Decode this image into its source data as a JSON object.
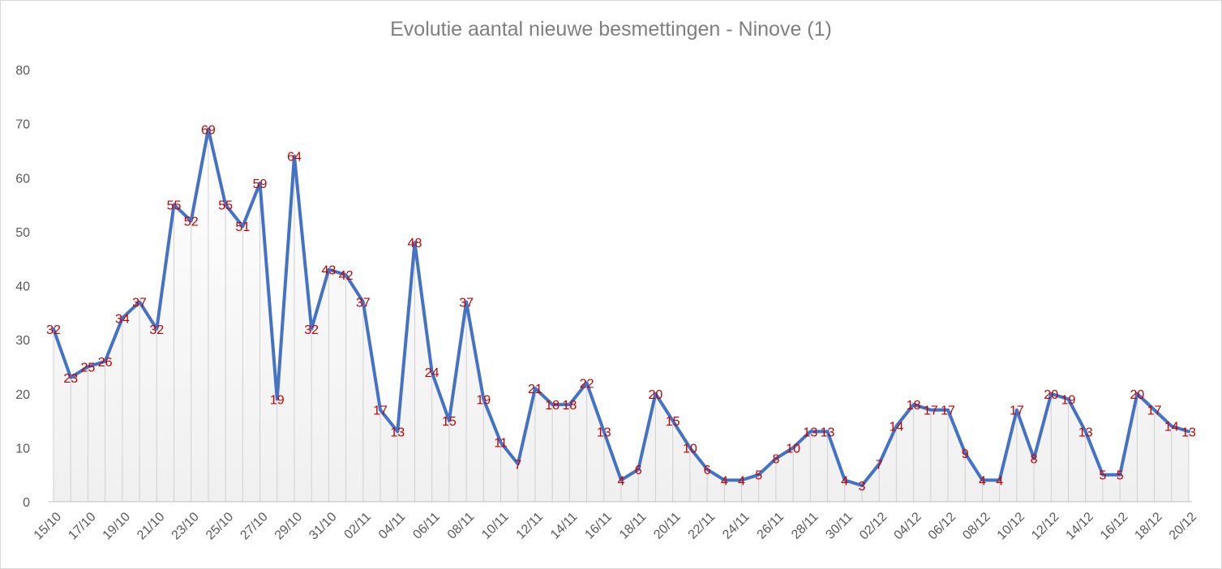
{
  "chart_data": {
    "type": "line",
    "title": "Evolutie aantal nieuwe besmettingen - Ninove (1)",
    "xlabel": "",
    "ylabel": "",
    "ylim": [
      0,
      80
    ],
    "yticks": [
      0,
      10,
      20,
      30,
      40,
      50,
      60,
      70,
      80
    ],
    "grid": false,
    "legend": "none",
    "line_color": "#4472c4",
    "label_color": "#c00000",
    "categories": [
      "15/10",
      "16/10",
      "17/10",
      "18/10",
      "19/10",
      "20/10",
      "21/10",
      "22/10",
      "23/10",
      "24/10",
      "25/10",
      "26/10",
      "27/10",
      "28/10",
      "29/10",
      "30/10",
      "31/10",
      "01/11",
      "02/11",
      "03/11",
      "04/11",
      "05/11",
      "06/11",
      "07/11",
      "08/11",
      "09/11",
      "10/11",
      "11/11",
      "12/11",
      "13/11",
      "14/11",
      "15/11",
      "16/11",
      "17/11",
      "18/11",
      "19/11",
      "20/11",
      "21/11",
      "22/11",
      "23/11",
      "24/11",
      "25/11",
      "26/11",
      "27/11",
      "28/11",
      "29/11",
      "30/11",
      "01/12",
      "02/12",
      "03/12",
      "04/12",
      "05/12",
      "06/12",
      "07/12",
      "08/12",
      "09/12",
      "10/12",
      "11/12",
      "12/12",
      "13/12",
      "14/12",
      "15/12",
      "16/12",
      "17/12",
      "18/12",
      "19/12",
      "20/12"
    ],
    "tick_labels": [
      "15/10",
      "17/10",
      "19/10",
      "21/10",
      "23/10",
      "25/10",
      "27/10",
      "29/10",
      "31/10",
      "02/11",
      "04/11",
      "06/11",
      "08/11",
      "10/11",
      "12/11",
      "14/11",
      "16/11",
      "18/11",
      "20/11",
      "22/11",
      "24/11",
      "26/11",
      "28/11",
      "30/11",
      "02/12",
      "04/12",
      "06/12",
      "08/12",
      "10/12",
      "12/12",
      "14/12",
      "16/12",
      "18/12",
      "20/12"
    ],
    "series": [
      {
        "values": [
          32,
          23,
          25,
          26,
          34,
          37,
          32,
          55,
          52,
          69,
          55,
          51,
          59,
          19,
          64,
          32,
          43,
          42,
          37,
          17,
          13,
          48,
          24,
          15,
          37,
          19,
          11,
          7,
          21,
          18,
          18,
          22,
          13,
          4,
          6,
          20,
          15,
          10,
          6,
          4,
          4,
          5,
          8,
          10,
          13,
          13,
          4,
          3,
          7,
          14,
          18,
          17,
          17,
          9,
          4,
          4,
          17,
          8,
          20,
          19,
          13,
          5,
          5,
          20,
          17,
          14,
          13
        ]
      }
    ]
  }
}
